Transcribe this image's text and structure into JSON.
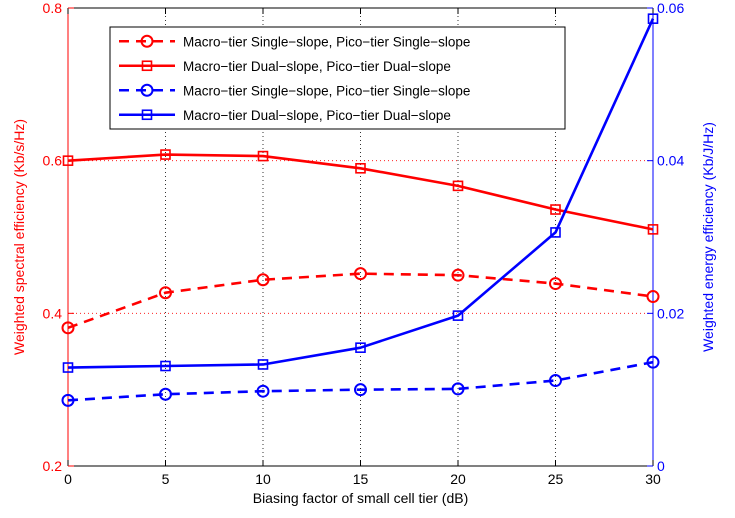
{
  "chart_data": {
    "type": "line",
    "x": [
      0,
      5,
      10,
      15,
      20,
      25,
      30
    ],
    "xlabel": "Biasing factor of small cell tier (dB)",
    "xlim": [
      0,
      30
    ],
    "xticks": [
      0,
      5,
      10,
      15,
      20,
      25,
      30
    ],
    "left_axis": {
      "label": "Weighted spectral efficiency (Kb/s/Hz)",
      "lim": [
        0.2,
        0.8
      ],
      "ticks": [
        0.2,
        0.4,
        0.6,
        0.8
      ],
      "tick_labels": [
        "0.2",
        "0.4",
        "0.6",
        "0.8"
      ],
      "color": "#ff0000"
    },
    "right_axis": {
      "label": "Weighted energy efficiency (Kb/J/Hz)",
      "lim": [
        0,
        0.06
      ],
      "ticks": [
        0,
        0.02,
        0.04,
        0.06
      ],
      "tick_labels": [
        "0",
        "0.02",
        "0.04",
        "0.06"
      ],
      "color": "#0000ff"
    },
    "grid": true,
    "legend_position": "top-center",
    "series": [
      {
        "name": "Macro−tier Single−slope, Pico−tier Single−slope",
        "axis": "left",
        "color": "#ff0000",
        "line_style": "dashed",
        "marker": "circle",
        "values": [
          0.381,
          0.427,
          0.444,
          0.452,
          0.45,
          0.439,
          0.422
        ]
      },
      {
        "name": "Macro−tier Dual−slope, Pico−tier Dual−slope",
        "axis": "left",
        "color": "#ff0000",
        "line_style": "solid",
        "marker": "square",
        "values": [
          0.6,
          0.608,
          0.606,
          0.59,
          0.567,
          0.536,
          0.51
        ]
      },
      {
        "name": "Macro−tier Single−slope, Pico−tier Single−slope",
        "axis": "right",
        "color": "#0000ff",
        "line_style": "dashed",
        "marker": "circle",
        "values": [
          0.0086,
          0.0094,
          0.0098,
          0.01,
          0.0101,
          0.0112,
          0.0136
        ]
      },
      {
        "name": "Macro−tier Dual−slope, Pico−tier Dual−slope",
        "axis": "right",
        "color": "#0000ff",
        "line_style": "solid",
        "marker": "square",
        "values": [
          0.0129,
          0.0131,
          0.0133,
          0.0155,
          0.0197,
          0.0306,
          0.0586
        ]
      }
    ]
  }
}
